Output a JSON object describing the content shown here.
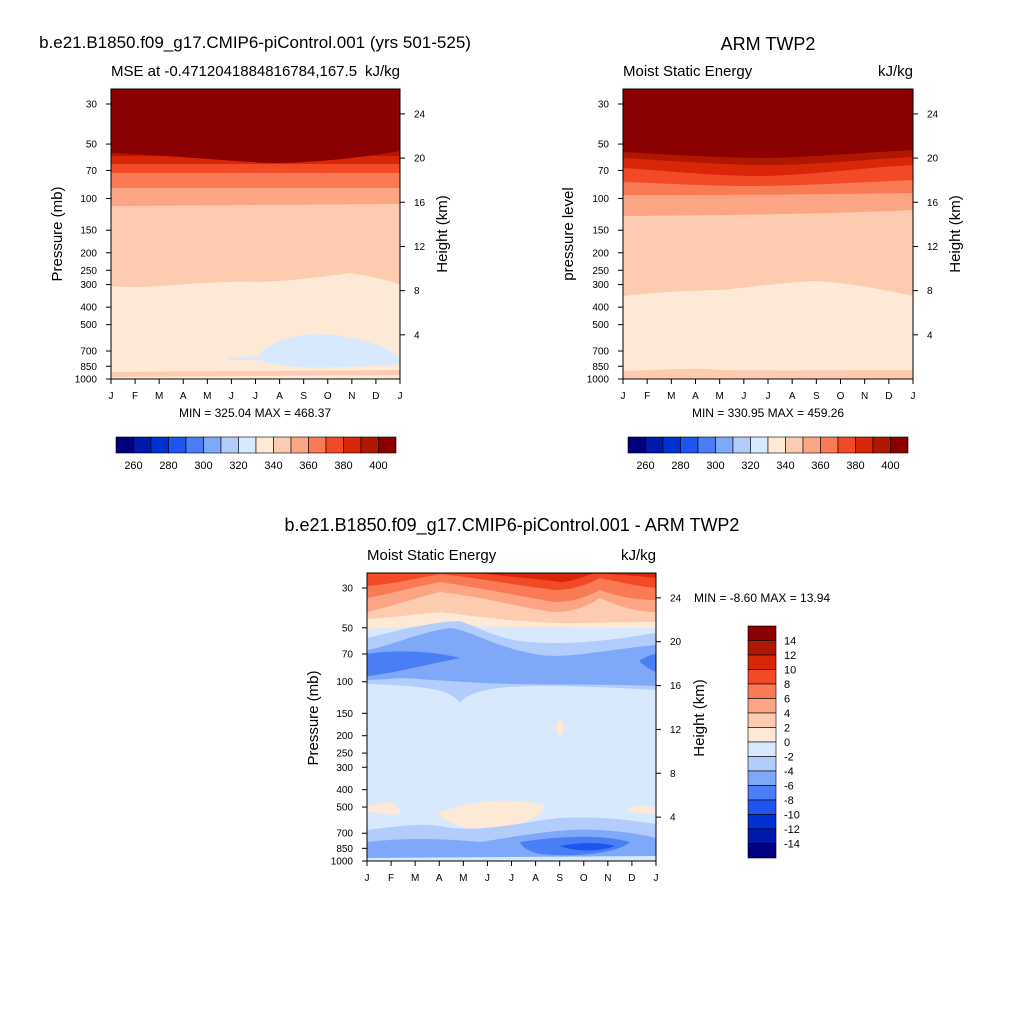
{
  "window": {
    "title": ""
  },
  "panels": [
    {
      "id": "model",
      "title": "b.e21.B1850.f09_g17.CMIP6-piControl.001 (yrs 501-525)",
      "left_label": "MSE at -0.4712041884816784,167.5",
      "right_label": "kJ/kg",
      "ylabel": "Pressure (mb)",
      "y2label": "Height (km)",
      "stats": "MIN = 325.04 MAX = 468.37"
    },
    {
      "id": "obs",
      "title": "ARM TWP2",
      "left_label": "Moist Static Energy",
      "right_label": "kJ/kg",
      "ylabel": "pressure level",
      "y2label": "Height (km)",
      "stats": "MIN = 330.95 MAX = 459.26"
    },
    {
      "id": "diff",
      "title": "b.e21.B1850.f09_g17.CMIP6-piControl.001 - ARM TWP2",
      "left_label": "Moist Static Energy",
      "right_label": "kJ/kg",
      "ylabel": "Pressure (mb)",
      "y2label": "Height (km)",
      "stats": "MIN =  -8.60 MAX =  13.94"
    }
  ],
  "shared_axes": {
    "months": [
      "J",
      "F",
      "M",
      "A",
      "M",
      "J",
      "J",
      "A",
      "S",
      "O",
      "N",
      "D",
      "J"
    ],
    "pressure_ticks": [
      "30",
      "50",
      "70",
      "100",
      "150",
      "200",
      "250",
      "300",
      "400",
      "500",
      "700",
      "850",
      "1000"
    ],
    "height_ticks_top": [
      "24",
      "20",
      "16",
      "12",
      "8",
      "4"
    ],
    "height_ticks_diff": [
      "24",
      "20",
      "16",
      "12",
      "8",
      "4"
    ]
  },
  "colorbars": {
    "main": {
      "colors": [
        "#00007f",
        "#0019a8",
        "#0032d2",
        "#1e55ee",
        "#4a7ef5",
        "#7fa8f8",
        "#b2cdfb",
        "#d9e9fd",
        "#fee8d6",
        "#fdcbb0",
        "#fca585",
        "#f97a55",
        "#f24a26",
        "#d92508",
        "#b01700",
        "#8b0000"
      ],
      "labels": [
        "260",
        "280",
        "300",
        "320",
        "340",
        "360",
        "380",
        "400"
      ]
    },
    "diff": {
      "colors": [
        "#00007f",
        "#0019a8",
        "#0032d2",
        "#1e55ee",
        "#4a7ef5",
        "#7fa8f8",
        "#b2cdfb",
        "#d9e9fd",
        "#fee8d6",
        "#fdcbb0",
        "#fca585",
        "#f97a55",
        "#f24a26",
        "#d92508",
        "#b01700",
        "#8b0000"
      ],
      "labels": [
        "14",
        "12",
        "10",
        "8",
        "6",
        "4",
        "2",
        "0",
        "-2",
        "-4",
        "-6",
        "-8",
        "-10",
        "-12",
        "-14"
      ]
    }
  },
  "chart_data": [
    {
      "type": "heatmap",
      "title": "b.e21.B1850.f09_g17.CMIP6-piControl.001 (yrs 501-525)",
      "xlabel": "",
      "ylabel": "Pressure (mb)",
      "y2label": "Height (km)",
      "x": [
        "J",
        "F",
        "M",
        "A",
        "M",
        "J",
        "J",
        "A",
        "S",
        "O",
        "N",
        "D",
        "J"
      ],
      "y_pressure_mb": [
        30,
        50,
        70,
        100,
        150,
        200,
        250,
        300,
        400,
        500,
        700,
        850,
        1000
      ],
      "units": "kJ/kg",
      "min": 325.04,
      "max": 468.37,
      "levels": [
        260,
        270,
        280,
        290,
        300,
        310,
        320,
        330,
        340,
        350,
        360,
        370,
        380,
        390,
        400
      ],
      "profile_approx": [
        {
          "p": 30,
          "v": 450
        },
        {
          "p": 50,
          "v": 400
        },
        {
          "p": 70,
          "v": 385
        },
        {
          "p": 100,
          "v": 360
        },
        {
          "p": 150,
          "v": 345
        },
        {
          "p": 300,
          "v": 340
        },
        {
          "p": 500,
          "v": 335
        },
        {
          "p": 700,
          "v": 333
        },
        {
          "p": 1000,
          "v": 345
        }
      ]
    },
    {
      "type": "heatmap",
      "title": "ARM TWP2",
      "xlabel": "",
      "ylabel": "pressure level",
      "y2label": "Height (km)",
      "x": [
        "J",
        "F",
        "M",
        "A",
        "M",
        "J",
        "J",
        "A",
        "S",
        "O",
        "N",
        "D",
        "J"
      ],
      "y_pressure_mb": [
        30,
        50,
        70,
        100,
        150,
        200,
        250,
        300,
        400,
        500,
        700,
        850,
        1000
      ],
      "units": "kJ/kg",
      "min": 330.95,
      "max": 459.26,
      "levels": [
        260,
        270,
        280,
        290,
        300,
        310,
        320,
        330,
        340,
        350,
        360,
        370,
        380,
        390,
        400
      ]
    },
    {
      "type": "heatmap",
      "title": "b.e21.B1850.f09_g17.CMIP6-piControl.001 - ARM TWP2",
      "xlabel": "",
      "ylabel": "Pressure (mb)",
      "y2label": "Height (km)",
      "x": [
        "J",
        "F",
        "M",
        "A",
        "M",
        "J",
        "J",
        "A",
        "S",
        "O",
        "N",
        "D",
        "J"
      ],
      "y_pressure_mb": [
        30,
        50,
        70,
        100,
        150,
        200,
        250,
        300,
        400,
        500,
        700,
        850,
        1000
      ],
      "units": "kJ/kg",
      "min": -8.6,
      "max": 13.94,
      "levels": [
        -14,
        -12,
        -10,
        -8,
        -6,
        -4,
        -2,
        0,
        2,
        4,
        6,
        8,
        10,
        12,
        14
      ]
    }
  ]
}
